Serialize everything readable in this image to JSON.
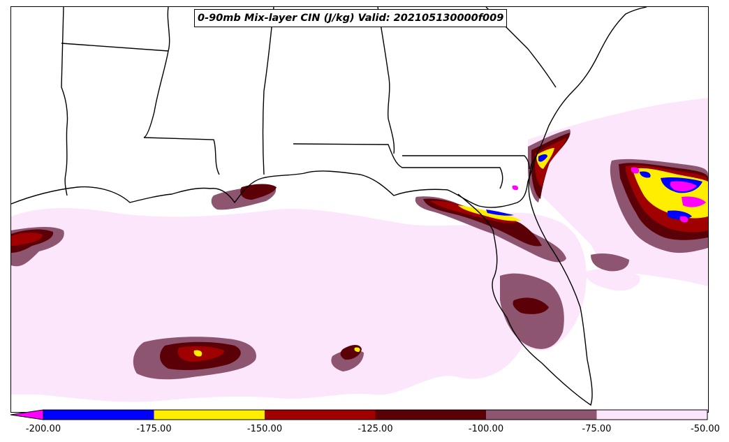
{
  "title": "0-90mb Mix-layer CIN (J/kg) Valid: 202105130000f009",
  "colorbar": {
    "levels": [
      -200,
      -175,
      -150,
      -125,
      -100,
      -75,
      -50
    ],
    "tick_labels": [
      "-200.00",
      "-175.00",
      "-150.00",
      "-125.00",
      "-100.00",
      "-75.00",
      "-50.00"
    ],
    "colors": [
      "#0000ff",
      "#ffee00",
      "#a00000",
      "#5c0008",
      "#8e5570",
      "#fbe6fb"
    ],
    "extend_color": "#ff00ff"
  },
  "palette": {
    "land": "#ffffff",
    "border": "#000000",
    "magenta": "#ff00ff",
    "blue": "#0000ff",
    "yellow": "#ffee00",
    "red": "#a00000",
    "darkred": "#5c0008",
    "mauve": "#8e5570",
    "pink": "#fbe6fb"
  }
}
